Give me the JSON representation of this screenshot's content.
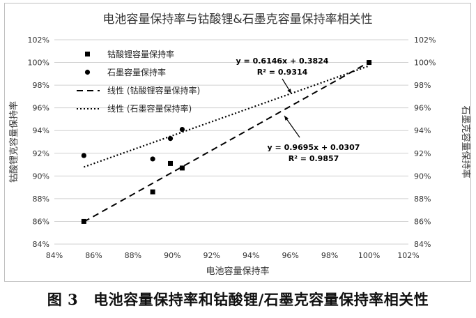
{
  "chart_data": {
    "type": "scatter",
    "title": "电池容量保持率与钴酸锂&石墨克容量保持率相关性",
    "xlabel": "电池容量保持率",
    "ylabel_left": "钴酸锂克容量保持率",
    "ylabel_right": "石墨克容量保持率",
    "xlim": [
      0.84,
      1.02
    ],
    "ylim": [
      0.84,
      1.02
    ],
    "x_ticks": [
      "84%",
      "86%",
      "88%",
      "90%",
      "92%",
      "94%",
      "96%",
      "98%",
      "100%",
      "102%"
    ],
    "y_ticks": [
      "84%",
      "86%",
      "88%",
      "90%",
      "92%",
      "94%",
      "96%",
      "98%",
      "100%",
      "102%"
    ],
    "grid": "horizontal",
    "legend_position": "top-left",
    "series": [
      {
        "name": "钴酸锂容量保持率",
        "marker": "square",
        "points": [
          [
            0.855,
            0.86
          ],
          [
            0.89,
            0.886
          ],
          [
            0.899,
            0.911
          ],
          [
            0.905,
            0.907
          ],
          [
            1.0,
            1.0
          ]
        ]
      },
      {
        "name": "石墨容量保持率",
        "marker": "circle",
        "points": [
          [
            0.855,
            0.918
          ],
          [
            0.89,
            0.915
          ],
          [
            0.899,
            0.933
          ],
          [
            0.905,
            0.941
          ],
          [
            1.0,
            1.0
          ]
        ]
      }
    ],
    "trendlines": [
      {
        "name": "线性 (钴酸锂容量保持率)",
        "style": "dashed",
        "slope": 0.9695,
        "intercept": 0.0307,
        "x_range": [
          0.855,
          1.0
        ],
        "equation": "y = 0.9695x + 0.0307",
        "r2": "R² = 0.9857"
      },
      {
        "name": "线性 (石墨容量保持率)",
        "style": "dotted",
        "slope": 0.6146,
        "intercept": 0.3824,
        "x_range": [
          0.855,
          1.0
        ],
        "equation": "y = 0.6146x + 0.3824",
        "r2": "R² = 0.9314"
      }
    ]
  },
  "caption": {
    "figure_number": "图 3",
    "text": "电池容量保持率和钴酸锂/石墨克容量保持率相关性"
  }
}
